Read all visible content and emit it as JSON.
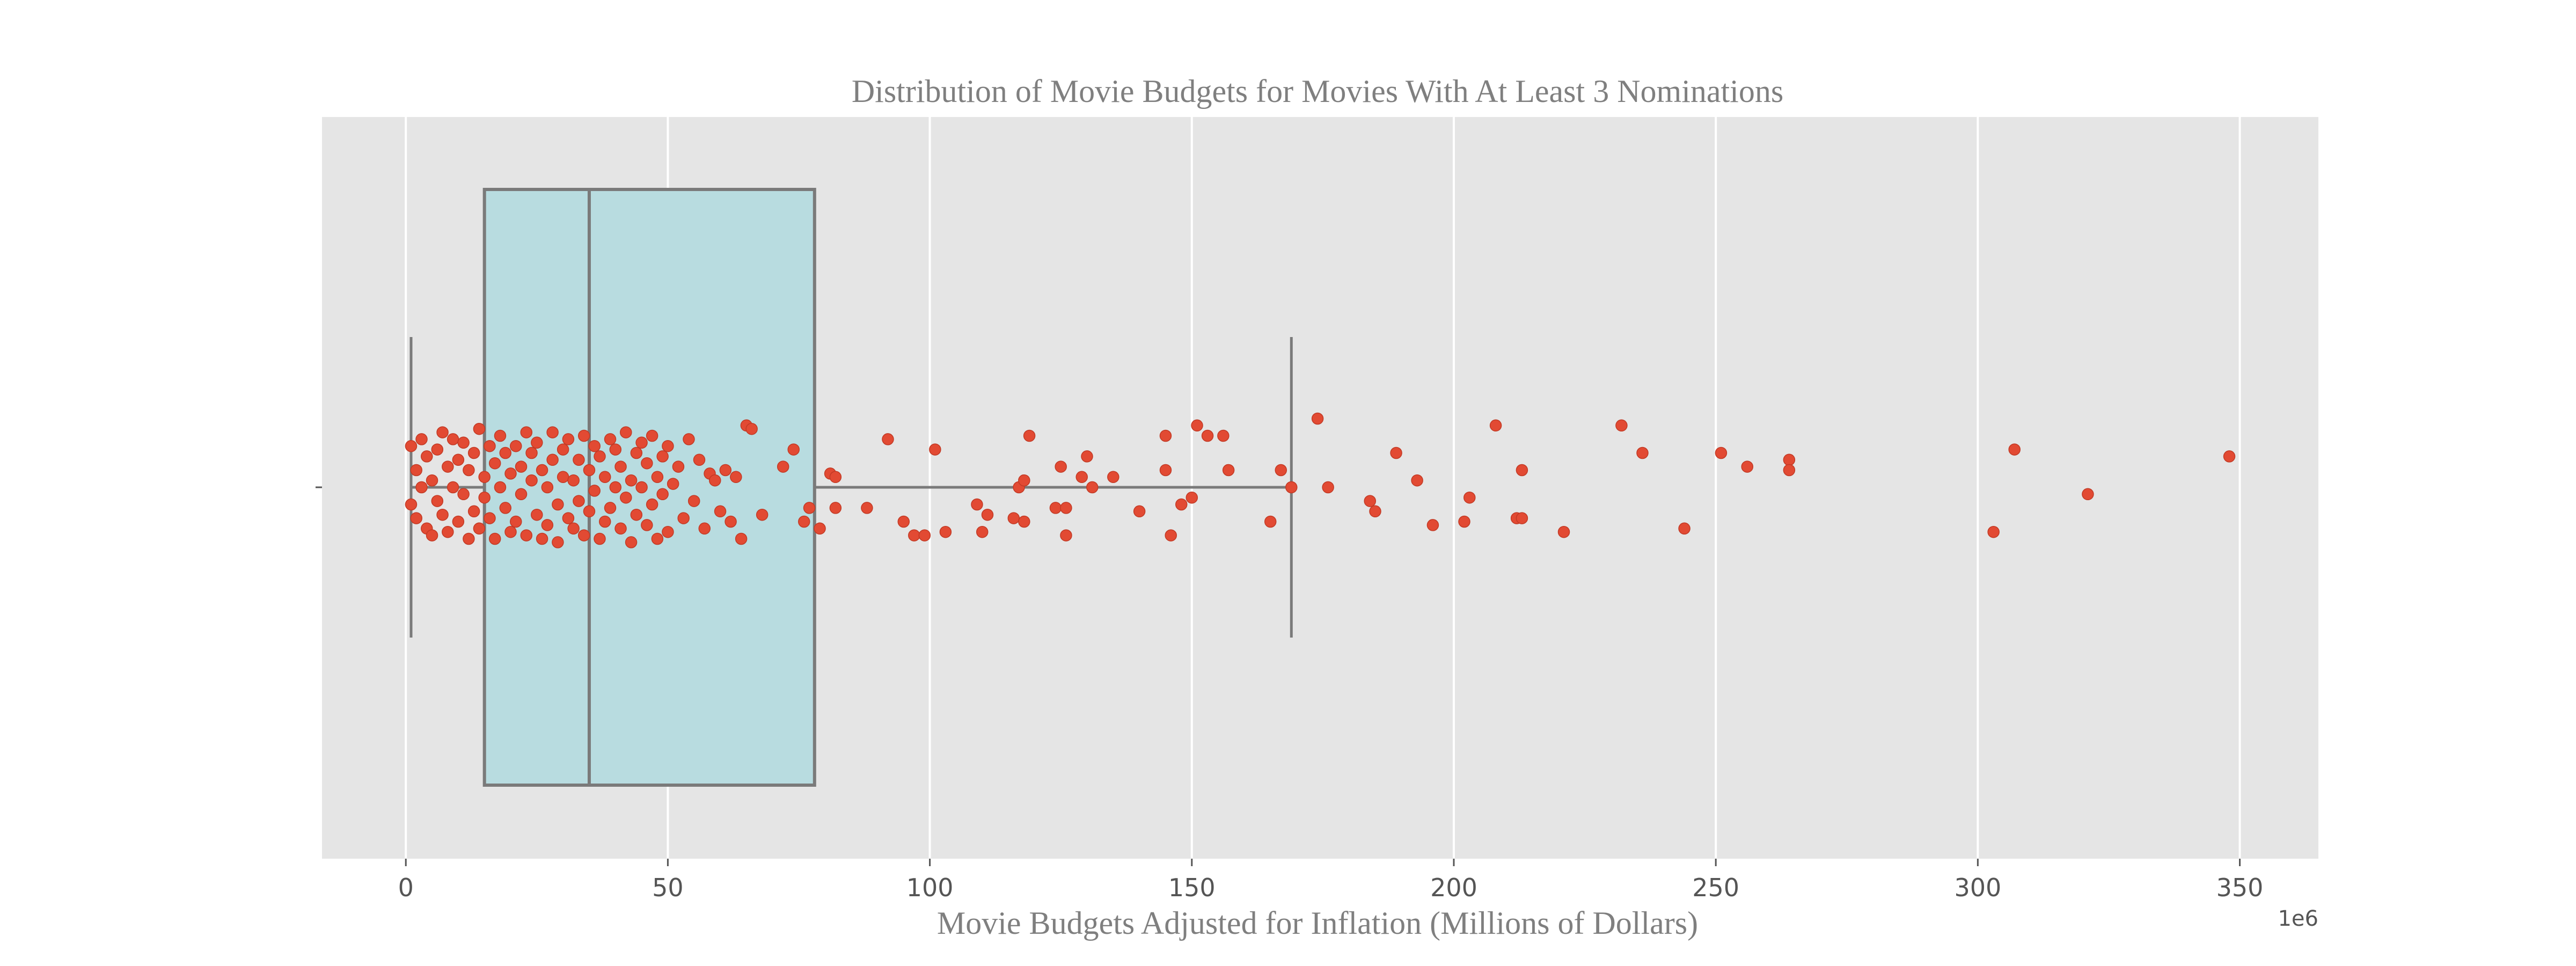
{
  "chart_data": {
    "type": "box",
    "title": "Distribution of Movie Budgets for Movies With At Least 3 Nominations",
    "xlabel": "Movie Budgets Adjusted for Inflation (Millions of Dollars)",
    "ylabel": "",
    "offset_text": "1e6",
    "xlim": [
      -16,
      365
    ],
    "xticks": [
      0,
      50,
      100,
      150,
      200,
      250,
      300,
      350
    ],
    "xtick_labels": [
      "0",
      "50",
      "100",
      "150",
      "200",
      "250",
      "300",
      "350"
    ],
    "grid": true,
    "box": {
      "whisker_low": 1,
      "q1": 15,
      "median": 35,
      "q3": 78,
      "whisker_high": 169,
      "fill": "#b8dce0",
      "stroke": "#7a7a7a"
    },
    "points_color": "#e24a33",
    "points": [
      [
        1,
        -0.05
      ],
      [
        1,
        0.12
      ],
      [
        2,
        0.05
      ],
      [
        2,
        -0.09
      ],
      [
        3,
        0.14
      ],
      [
        3,
        0.0
      ],
      [
        4,
        -0.12
      ],
      [
        4,
        0.09
      ],
      [
        5,
        0.02
      ],
      [
        5,
        -0.14
      ],
      [
        6,
        0.11
      ],
      [
        6,
        -0.04
      ],
      [
        7,
        0.16
      ],
      [
        7,
        -0.08
      ],
      [
        8,
        0.06
      ],
      [
        8,
        -0.13
      ],
      [
        9,
        0.0
      ],
      [
        9,
        0.14
      ],
      [
        10,
        -0.1
      ],
      [
        10,
        0.08
      ],
      [
        11,
        -0.02
      ],
      [
        11,
        0.13
      ],
      [
        12,
        -0.15
      ],
      [
        12,
        0.05
      ],
      [
        13,
        0.1
      ],
      [
        13,
        -0.07
      ],
      [
        14,
        0.17
      ],
      [
        14,
        -0.12
      ],
      [
        15,
        0.03
      ],
      [
        15,
        -0.03
      ],
      [
        16,
        0.12
      ],
      [
        16,
        -0.09
      ],
      [
        17,
        0.07
      ],
      [
        17,
        -0.15
      ],
      [
        18,
        0.0
      ],
      [
        18,
        0.15
      ],
      [
        19,
        -0.06
      ],
      [
        19,
        0.1
      ],
      [
        20,
        -0.13
      ],
      [
        20,
        0.04
      ],
      [
        21,
        0.12
      ],
      [
        21,
        -0.1
      ],
      [
        22,
        0.06
      ],
      [
        22,
        -0.02
      ],
      [
        23,
        0.16
      ],
      [
        23,
        -0.14
      ],
      [
        24,
        0.02
      ],
      [
        24,
        0.1
      ],
      [
        25,
        -0.08
      ],
      [
        25,
        0.13
      ],
      [
        26,
        -0.15
      ],
      [
        26,
        0.05
      ],
      [
        27,
        0.0
      ],
      [
        27,
        -0.11
      ],
      [
        28,
        0.16
      ],
      [
        28,
        0.08
      ],
      [
        29,
        -0.05
      ],
      [
        29,
        -0.16
      ],
      [
        30,
        0.11
      ],
      [
        30,
        0.03
      ],
      [
        31,
        -0.09
      ],
      [
        31,
        0.14
      ],
      [
        32,
        0.02
      ],
      [
        32,
        -0.12
      ],
      [
        33,
        0.08
      ],
      [
        33,
        -0.04
      ],
      [
        34,
        0.15
      ],
      [
        34,
        -0.14
      ],
      [
        35,
        0.05
      ],
      [
        35,
        -0.07
      ],
      [
        36,
        0.12
      ],
      [
        36,
        -0.01
      ],
      [
        37,
        -0.15
      ],
      [
        37,
        0.09
      ],
      [
        38,
        0.03
      ],
      [
        38,
        -0.1
      ],
      [
        39,
        0.14
      ],
      [
        39,
        -0.06
      ],
      [
        40,
        0.0
      ],
      [
        40,
        0.11
      ],
      [
        41,
        -0.12
      ],
      [
        41,
        0.06
      ],
      [
        42,
        -0.03
      ],
      [
        42,
        0.16
      ],
      [
        43,
        -0.16
      ],
      [
        43,
        0.02
      ],
      [
        44,
        0.1
      ],
      [
        44,
        -0.08
      ],
      [
        45,
        0.13
      ],
      [
        45,
        0.0
      ],
      [
        46,
        -0.11
      ],
      [
        46,
        0.07
      ],
      [
        47,
        -0.05
      ],
      [
        47,
        0.15
      ],
      [
        48,
        -0.15
      ],
      [
        48,
        0.03
      ],
      [
        49,
        0.09
      ],
      [
        49,
        -0.02
      ],
      [
        50,
        0.12
      ],
      [
        50,
        -0.13
      ],
      [
        51,
        0.01
      ],
      [
        52,
        0.06
      ],
      [
        53,
        -0.09
      ],
      [
        54,
        0.14
      ],
      [
        55,
        -0.04
      ],
      [
        56,
        0.08
      ],
      [
        57,
        -0.12
      ],
      [
        58,
        0.04
      ],
      [
        59,
        0.02
      ],
      [
        60,
        -0.07
      ],
      [
        61,
        0.05
      ],
      [
        62,
        -0.1
      ],
      [
        63,
        0.03
      ],
      [
        64,
        -0.15
      ],
      [
        65,
        0.18
      ],
      [
        66,
        0.17
      ],
      [
        68,
        -0.08
      ],
      [
        72,
        0.06
      ],
      [
        74,
        0.11
      ],
      [
        76,
        -0.1
      ],
      [
        77,
        -0.06
      ],
      [
        79,
        -0.12
      ],
      [
        81,
        0.04
      ],
      [
        82,
        0.03
      ],
      [
        82,
        -0.06
      ],
      [
        88,
        -0.06
      ],
      [
        92,
        0.14
      ],
      [
        95,
        -0.1
      ],
      [
        97,
        -0.14
      ],
      [
        99,
        -0.14
      ],
      [
        101,
        0.11
      ],
      [
        103,
        -0.13
      ],
      [
        109,
        -0.05
      ],
      [
        110,
        -0.13
      ],
      [
        111,
        -0.08
      ],
      [
        116,
        -0.09
      ],
      [
        117,
        0.0
      ],
      [
        118,
        0.02
      ],
      [
        118,
        -0.1
      ],
      [
        119,
        0.15
      ],
      [
        124,
        -0.06
      ],
      [
        125,
        0.06
      ],
      [
        126,
        -0.06
      ],
      [
        126,
        -0.14
      ],
      [
        129,
        0.03
      ],
      [
        130,
        0.09
      ],
      [
        131,
        0.0
      ],
      [
        135,
        0.03
      ],
      [
        140,
        -0.07
      ],
      [
        145,
        0.15
      ],
      [
        145,
        0.05
      ],
      [
        146,
        -0.14
      ],
      [
        148,
        -0.05
      ],
      [
        150,
        -0.03
      ],
      [
        151,
        0.18
      ],
      [
        153,
        0.15
      ],
      [
        156,
        0.15
      ],
      [
        157,
        0.05
      ],
      [
        165,
        -0.1
      ],
      [
        167,
        0.05
      ],
      [
        169,
        0.0
      ],
      [
        174,
        0.2
      ],
      [
        176,
        0.0
      ],
      [
        184,
        -0.04
      ],
      [
        185,
        -0.07
      ],
      [
        189,
        0.1
      ],
      [
        193,
        0.02
      ],
      [
        196,
        -0.11
      ],
      [
        202,
        -0.1
      ],
      [
        203,
        -0.03
      ],
      [
        208,
        0.18
      ],
      [
        212,
        -0.09
      ],
      [
        213,
        0.05
      ],
      [
        213,
        -0.09
      ],
      [
        221,
        -0.13
      ],
      [
        232,
        0.18
      ],
      [
        236,
        0.1
      ],
      [
        244,
        -0.12
      ],
      [
        251,
        0.1
      ],
      [
        256,
        0.06
      ],
      [
        264,
        0.08
      ],
      [
        264,
        0.05
      ],
      [
        303,
        -0.13
      ],
      [
        307,
        0.11
      ],
      [
        321,
        -0.02
      ],
      [
        348,
        0.09
      ]
    ]
  }
}
